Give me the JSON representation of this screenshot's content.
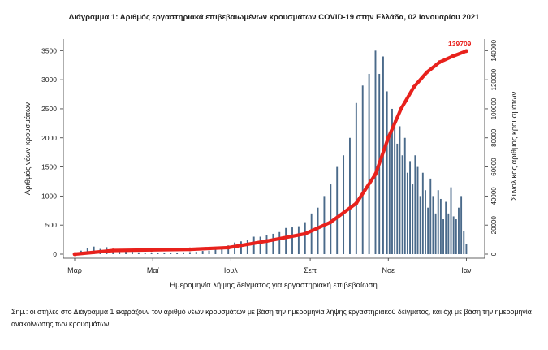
{
  "chart_data": {
    "type": "bar",
    "title": "Διάγραμμα 1: Αριθμός εργαστηριακά επιβεβαιωμένων κρουσμάτων COVID-19 στην Ελλάδα, 02 Ιανουαρίου 2021",
    "xlabel": "Ημερομηνία λήψης δείγματος για εργαστηριακή επιβεβαίωση",
    "ylabel": "Αριθμός νέων κρουσμάτων",
    "y2label": "Συνολικός αριθμός κρουσμάτων",
    "ylim": [
      0,
      3700
    ],
    "y2lim": [
      0,
      148000
    ],
    "yticks": [
      0,
      500,
      1000,
      1500,
      2000,
      2500,
      3000,
      3500
    ],
    "y2ticks": [
      0,
      20000,
      40000,
      60000,
      80000,
      100000,
      120000,
      140000
    ],
    "xticks": [
      {
        "label": "Μαρ",
        "day": 0
      },
      {
        "label": "Μαϊ",
        "day": 61
      },
      {
        "label": "Ιουλ",
        "day": 122
      },
      {
        "label": "Σεπ",
        "day": 184
      },
      {
        "label": "Νοε",
        "day": 245
      },
      {
        "label": "Ιαν",
        "day": 306
      }
    ],
    "x_range_days": [
      0,
      307
    ],
    "bar_color": "#4a6a8a",
    "line_color": "#e8211c",
    "series": [
      {
        "kind": "bar",
        "x_day": [
          0,
          5,
          10,
          15,
          20,
          25,
          30,
          35,
          40,
          45,
          50,
          55,
          60,
          65,
          70,
          75,
          80,
          85,
          90,
          95,
          100,
          105,
          110,
          115,
          120,
          125,
          130,
          135,
          140,
          145,
          150,
          155,
          160,
          165,
          170,
          175,
          180,
          185,
          190,
          195,
          200,
          205,
          210,
          215,
          220,
          225,
          230,
          235,
          238,
          241,
          244,
          246,
          248,
          250,
          252,
          254,
          256,
          258,
          260,
          262,
          264,
          266,
          268,
          270,
          272,
          274,
          276,
          278,
          280,
          282,
          284,
          286,
          288,
          290,
          292,
          294,
          296,
          298,
          300,
          302,
          304,
          306
        ],
        "values": [
          10,
          60,
          110,
          130,
          90,
          120,
          80,
          70,
          50,
          40,
          30,
          20,
          15,
          15,
          20,
          20,
          25,
          30,
          35,
          40,
          55,
          60,
          90,
          120,
          150,
          200,
          220,
          240,
          300,
          300,
          330,
          350,
          380,
          450,
          460,
          480,
          550,
          700,
          800,
          1000,
          1200,
          1500,
          1700,
          2000,
          2600,
          2900,
          3100,
          3500,
          3100,
          3400,
          2800,
          2100,
          2500,
          2300,
          1900,
          2200,
          1700,
          2000,
          1400,
          1600,
          1200,
          1700,
          1500,
          1000,
          1400,
          1100,
          800,
          1300,
          1000,
          700,
          1100,
          950,
          600,
          900,
          700,
          1150,
          650,
          600,
          800,
          1000,
          400,
          180
        ]
      },
      {
        "kind": "line",
        "axis": "right",
        "x_day": [
          0,
          30,
          60,
          90,
          120,
          150,
          180,
          200,
          220,
          235,
          245,
          255,
          265,
          275,
          285,
          295,
          306
        ],
        "values": [
          0,
          2500,
          2900,
          3300,
          4500,
          9000,
          14000,
          22000,
          35000,
          55000,
          80000,
          100000,
          115000,
          125000,
          132000,
          136000,
          139709
        ]
      }
    ],
    "annotations": [
      {
        "text": "139709",
        "day": 306,
        "value": 139709,
        "axis": "right",
        "color": "#e8211c"
      }
    ]
  },
  "note": "Σημ.: οι στήλες στο Διάγραμμα 1 εκφράζουν τον αριθμό νέων κρουσμάτων με βάση την ημερομηνία λήψης εργαστηριακού δείγματος, και όχι με βάση την ημερομηνία ανακοίνωσης των κρουσμάτων."
}
